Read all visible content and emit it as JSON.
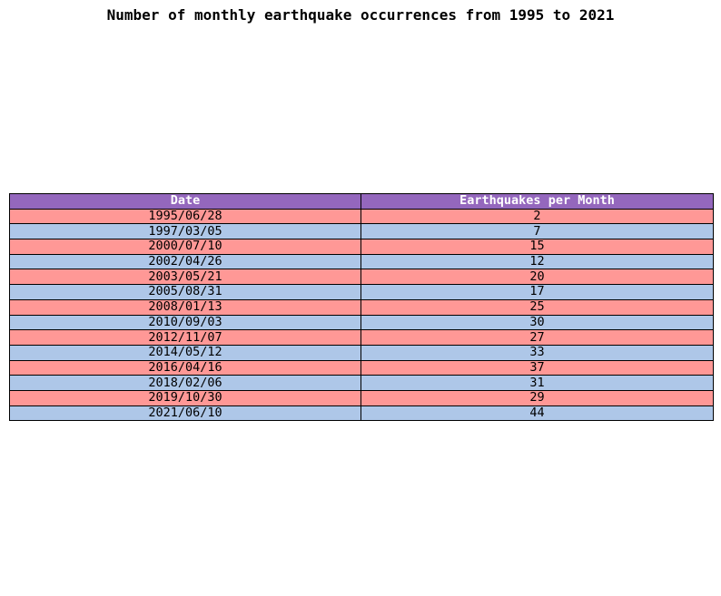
{
  "chart_data": {
    "type": "table",
    "title": "Number of monthly earthquake occurrences from 1995 to 2021",
    "columns": [
      "Date",
      "Earthquakes per Month"
    ],
    "rows": [
      [
        "1995/06/28",
        2
      ],
      [
        "1997/03/05",
        7
      ],
      [
        "2000/07/10",
        15
      ],
      [
        "2002/04/26",
        12
      ],
      [
        "2003/05/21",
        20
      ],
      [
        "2005/08/31",
        17
      ],
      [
        "2008/01/13",
        25
      ],
      [
        "2010/09/03",
        30
      ],
      [
        "2012/11/07",
        27
      ],
      [
        "2014/05/12",
        33
      ],
      [
        "2016/04/16",
        37
      ],
      [
        "2018/02/06",
        31
      ],
      [
        "2019/10/30",
        29
      ],
      [
        "2021/06/10",
        44
      ]
    ],
    "colors": {
      "header": "#9467bd",
      "row_odd": "#ff9896",
      "row_even": "#aec7e8",
      "border": "#000000"
    }
  }
}
